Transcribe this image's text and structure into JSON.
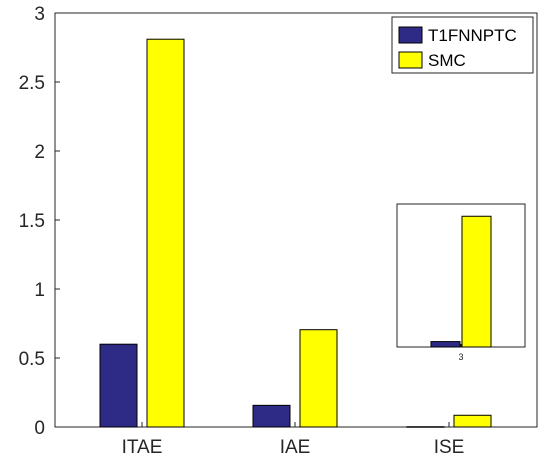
{
  "chart_data": {
    "type": "bar",
    "categories": [
      "ITAE",
      "IAE",
      "ISE"
    ],
    "series": [
      {
        "name": "T1FNNPTC",
        "color": "#2e2b86",
        "values": [
          0.6,
          0.157,
          0.002
        ]
      },
      {
        "name": "SMC",
        "color": "#ffff00",
        "values": [
          2.81,
          0.705,
          0.085
        ]
      }
    ],
    "ylim": [
      0,
      3
    ],
    "yticks": [
      "0",
      "0.5",
      "1",
      "1.5",
      "2",
      "2.5",
      "3"
    ],
    "ytick_values": [
      0,
      0.5,
      1,
      1.5,
      2,
      2.5,
      3
    ],
    "legend_position": "top-right",
    "grid": false,
    "inset": {
      "category": "3",
      "series_values": [
        0.0053,
        0.128
      ],
      "ylim": [
        0,
        0.14
      ]
    }
  }
}
